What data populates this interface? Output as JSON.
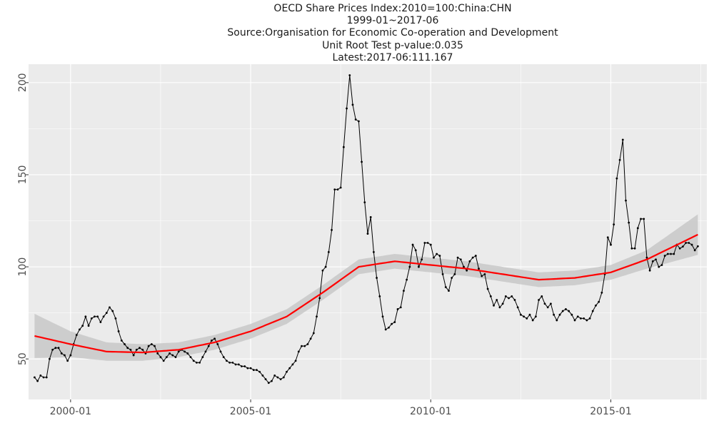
{
  "chart_data": {
    "type": "line",
    "title_lines": [
      "OECD Share Prices Index:2010=100:China:CHN",
      "1999-01~2017-06",
      "Source:Organisation for Economic Co-operation and Development",
      "Unit Root Test p-value:0.035",
      "Latest:2017-06:111.167"
    ],
    "xlabel": "",
    "ylabel": "",
    "x_ticks": [
      "2000-01",
      "2005-01",
      "2010-01",
      "2015-01"
    ],
    "y_ticks": [
      50,
      100,
      150,
      200
    ],
    "xlim": [
      "1998-11",
      "2017-09"
    ],
    "ylim": [
      28,
      210
    ],
    "grid": true,
    "colors": {
      "panel": "#ebebeb",
      "grid": "#ffffff",
      "series": "#000000",
      "smooth": "#ff0000",
      "band": "#c8c8c8"
    },
    "series": [
      {
        "type": "line",
        "points": [
          [
            "1999-01",
            40
          ],
          [
            "1999-02",
            38
          ],
          [
            "1999-03",
            41
          ],
          [
            "1999-04",
            40
          ],
          [
            "1999-05",
            40
          ],
          [
            "1999-06",
            50
          ],
          [
            "1999-07",
            55
          ],
          [
            "1999-08",
            56
          ],
          [
            "1999-09",
            56
          ],
          [
            "1999-10",
            53
          ],
          [
            "1999-11",
            52
          ],
          [
            "1999-12",
            49
          ],
          [
            "2000-01",
            52
          ],
          [
            "2000-02",
            58
          ],
          [
            "2000-03",
            63
          ],
          [
            "2000-04",
            66
          ],
          [
            "2000-05",
            68
          ],
          [
            "2000-06",
            73
          ],
          [
            "2000-07",
            68
          ],
          [
            "2000-08",
            72
          ],
          [
            "2000-09",
            73
          ],
          [
            "2000-10",
            73
          ],
          [
            "2000-11",
            70
          ],
          [
            "2000-12",
            73
          ],
          [
            "2001-01",
            75
          ],
          [
            "2001-02",
            78
          ],
          [
            "2001-03",
            76
          ],
          [
            "2001-04",
            72
          ],
          [
            "2001-05",
            65
          ],
          [
            "2001-06",
            60
          ],
          [
            "2001-07",
            58
          ],
          [
            "2001-08",
            56
          ],
          [
            "2001-09",
            55
          ],
          [
            "2001-10",
            52
          ],
          [
            "2001-11",
            55
          ],
          [
            "2001-12",
            56
          ],
          [
            "2002-01",
            55
          ],
          [
            "2002-02",
            53
          ],
          [
            "2002-03",
            57
          ],
          [
            "2002-04",
            58
          ],
          [
            "2002-05",
            57
          ],
          [
            "2002-06",
            53
          ],
          [
            "2002-07",
            51
          ],
          [
            "2002-08",
            49
          ],
          [
            "2002-09",
            51
          ],
          [
            "2002-10",
            53
          ],
          [
            "2002-11",
            52
          ],
          [
            "2002-12",
            51
          ],
          [
            "2003-01",
            54
          ],
          [
            "2003-02",
            55
          ],
          [
            "2003-03",
            54
          ],
          [
            "2003-04",
            53
          ],
          [
            "2003-05",
            51
          ],
          [
            "2003-06",
            49
          ],
          [
            "2003-07",
            48
          ],
          [
            "2003-08",
            48
          ],
          [
            "2003-09",
            51
          ],
          [
            "2003-10",
            54
          ],
          [
            "2003-11",
            57
          ],
          [
            "2003-12",
            60
          ],
          [
            "2004-01",
            61
          ],
          [
            "2004-02",
            58
          ],
          [
            "2004-03",
            54
          ],
          [
            "2004-04",
            51
          ],
          [
            "2004-05",
            49
          ],
          [
            "2004-06",
            48
          ],
          [
            "2004-07",
            48
          ],
          [
            "2004-08",
            47
          ],
          [
            "2004-09",
            47
          ],
          [
            "2004-10",
            46
          ],
          [
            "2004-11",
            46
          ],
          [
            "2004-12",
            45
          ],
          [
            "2005-01",
            45
          ],
          [
            "2005-02",
            44
          ],
          [
            "2005-03",
            44
          ],
          [
            "2005-04",
            43
          ],
          [
            "2005-05",
            41
          ],
          [
            "2005-06",
            39
          ],
          [
            "2005-07",
            37
          ],
          [
            "2005-08",
            38
          ],
          [
            "2005-09",
            41
          ],
          [
            "2005-10",
            40
          ],
          [
            "2005-11",
            39
          ],
          [
            "2005-12",
            40
          ],
          [
            "2006-01",
            43
          ],
          [
            "2006-02",
            45
          ],
          [
            "2006-03",
            47
          ],
          [
            "2006-04",
            49
          ],
          [
            "2006-05",
            54
          ],
          [
            "2006-06",
            57
          ],
          [
            "2006-07",
            57
          ],
          [
            "2006-08",
            58
          ],
          [
            "2006-09",
            61
          ],
          [
            "2006-10",
            64
          ],
          [
            "2006-11",
            73
          ],
          [
            "2006-12",
            83
          ],
          [
            "2007-01",
            98
          ],
          [
            "2007-02",
            100
          ],
          [
            "2007-03",
            108
          ],
          [
            "2007-04",
            120
          ],
          [
            "2007-05",
            142
          ],
          [
            "2007-06",
            142
          ],
          [
            "2007-07",
            143
          ],
          [
            "2007-08",
            165
          ],
          [
            "2007-09",
            186
          ],
          [
            "2007-10",
            204
          ],
          [
            "2007-11",
            188
          ],
          [
            "2007-12",
            180
          ],
          [
            "2008-01",
            179
          ],
          [
            "2008-02",
            157
          ],
          [
            "2008-03",
            135
          ],
          [
            "2008-04",
            118
          ],
          [
            "2008-05",
            127
          ],
          [
            "2008-06",
            108
          ],
          [
            "2008-07",
            94
          ],
          [
            "2008-08",
            84
          ],
          [
            "2008-09",
            73
          ],
          [
            "2008-10",
            66
          ],
          [
            "2008-11",
            67
          ],
          [
            "2008-12",
            69
          ],
          [
            "2009-01",
            70
          ],
          [
            "2009-02",
            77
          ],
          [
            "2009-03",
            78
          ],
          [
            "2009-04",
            87
          ],
          [
            "2009-05",
            93
          ],
          [
            "2009-06",
            100
          ],
          [
            "2009-07",
            112
          ],
          [
            "2009-08",
            109
          ],
          [
            "2009-09",
            100
          ],
          [
            "2009-10",
            104
          ],
          [
            "2009-11",
            113
          ],
          [
            "2009-12",
            113
          ],
          [
            "2010-01",
            112
          ],
          [
            "2010-02",
            105
          ],
          [
            "2010-03",
            107
          ],
          [
            "2010-04",
            106
          ],
          [
            "2010-05",
            96
          ],
          [
            "2010-06",
            89
          ],
          [
            "2010-07",
            87
          ],
          [
            "2010-08",
            94
          ],
          [
            "2010-09",
            96
          ],
          [
            "2010-10",
            105
          ],
          [
            "2010-11",
            104
          ],
          [
            "2010-12",
            100
          ],
          [
            "2011-01",
            98
          ],
          [
            "2011-02",
            103
          ],
          [
            "2011-03",
            105
          ],
          [
            "2011-04",
            106
          ],
          [
            "2011-05",
            99
          ],
          [
            "2011-06",
            95
          ],
          [
            "2011-07",
            96
          ],
          [
            "2011-08",
            88
          ],
          [
            "2011-09",
            84
          ],
          [
            "2011-10",
            79
          ],
          [
            "2011-11",
            82
          ],
          [
            "2011-12",
            78
          ],
          [
            "2012-01",
            80
          ],
          [
            "2012-02",
            84
          ],
          [
            "2012-03",
            83
          ],
          [
            "2012-04",
            84
          ],
          [
            "2012-05",
            82
          ],
          [
            "2012-06",
            78
          ],
          [
            "2012-07",
            74
          ],
          [
            "2012-08",
            73
          ],
          [
            "2012-09",
            72
          ],
          [
            "2012-10",
            74
          ],
          [
            "2012-11",
            71
          ],
          [
            "2012-12",
            73
          ],
          [
            "2013-01",
            82
          ],
          [
            "2013-02",
            84
          ],
          [
            "2013-03",
            80
          ],
          [
            "2013-04",
            78
          ],
          [
            "2013-05",
            80
          ],
          [
            "2013-06",
            74
          ],
          [
            "2013-07",
            71
          ],
          [
            "2013-08",
            74
          ],
          [
            "2013-09",
            76
          ],
          [
            "2013-10",
            77
          ],
          [
            "2013-11",
            76
          ],
          [
            "2013-12",
            74
          ],
          [
            "2014-01",
            71
          ],
          [
            "2014-02",
            73
          ],
          [
            "2014-03",
            72
          ],
          [
            "2014-04",
            72
          ],
          [
            "2014-05",
            71
          ],
          [
            "2014-06",
            72
          ],
          [
            "2014-07",
            76
          ],
          [
            "2014-08",
            79
          ],
          [
            "2014-09",
            81
          ],
          [
            "2014-10",
            86
          ],
          [
            "2014-11",
            96
          ],
          [
            "2014-12",
            116
          ],
          [
            "2015-01",
            112
          ],
          [
            "2015-02",
            123
          ],
          [
            "2015-03",
            148
          ],
          [
            "2015-04",
            158
          ],
          [
            "2015-05",
            169
          ],
          [
            "2015-06",
            136
          ],
          [
            "2015-07",
            124
          ],
          [
            "2015-08",
            110
          ],
          [
            "2015-09",
            110
          ],
          [
            "2015-10",
            121
          ],
          [
            "2015-11",
            126
          ],
          [
            "2015-12",
            126
          ],
          [
            "2016-01",
            105
          ],
          [
            "2016-02",
            98
          ],
          [
            "2016-03",
            103
          ],
          [
            "2016-04",
            104
          ],
          [
            "2016-05",
            100
          ],
          [
            "2016-06",
            101
          ],
          [
            "2016-07",
            106
          ],
          [
            "2016-08",
            107
          ],
          [
            "2016-09",
            107
          ],
          [
            "2016-10",
            107
          ],
          [
            "2016-11",
            112
          ],
          [
            "2016-12",
            110
          ],
          [
            "2017-01",
            111
          ],
          [
            "2017-02",
            113
          ],
          [
            "2017-03",
            113
          ],
          [
            "2017-04",
            112
          ],
          [
            "2017-05",
            109
          ],
          [
            "2017-06",
            111.167
          ]
        ]
      },
      {
        "type": "smooth",
        "points": [
          [
            "1999-01",
            62.5
          ],
          [
            "2000-01",
            58
          ],
          [
            "2001-01",
            54
          ],
          [
            "2002-01",
            53.5
          ],
          [
            "2003-01",
            55
          ],
          [
            "2004-01",
            59
          ],
          [
            "2005-01",
            65
          ],
          [
            "2006-01",
            73
          ],
          [
            "2007-01",
            86
          ],
          [
            "2008-01",
            100
          ],
          [
            "2009-01",
            103
          ],
          [
            "2010-01",
            101
          ],
          [
            "2011-01",
            99
          ],
          [
            "2012-01",
            96
          ],
          [
            "2013-01",
            93
          ],
          [
            "2014-01",
            94
          ],
          [
            "2015-01",
            97
          ],
          [
            "2016-01",
            104
          ],
          [
            "2017-06",
            117.5
          ]
        ],
        "band_half_width": [
          [
            "1999-01",
            12
          ],
          [
            "2000-01",
            7
          ],
          [
            "2001-01",
            5
          ],
          [
            "2003-01",
            4
          ],
          [
            "2005-01",
            4
          ],
          [
            "2007-01",
            4
          ],
          [
            "2009-01",
            4
          ],
          [
            "2011-01",
            4
          ],
          [
            "2013-01",
            4
          ],
          [
            "2015-01",
            4
          ],
          [
            "2016-01",
            5
          ],
          [
            "2017-06",
            11
          ]
        ]
      }
    ]
  }
}
